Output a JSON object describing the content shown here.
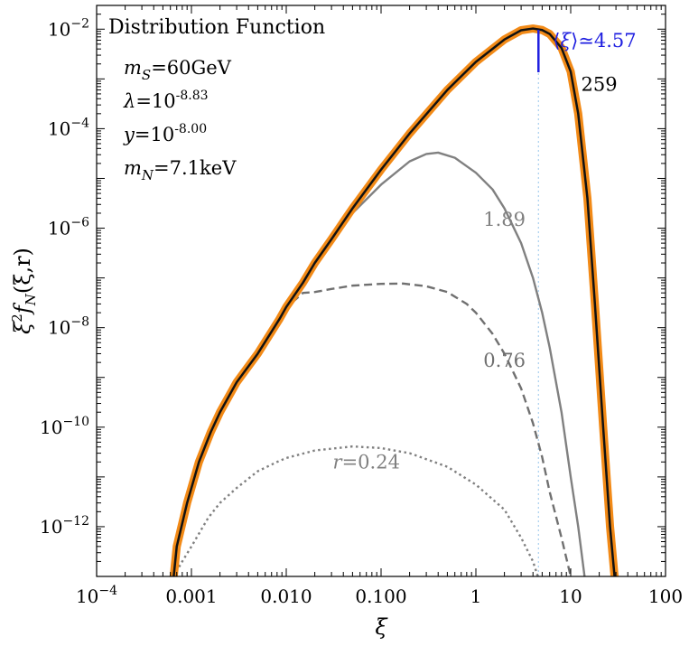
{
  "chart_data": {
    "type": "line",
    "title": "Distribution Function",
    "xlabel": "ξ",
    "ylabel_main": "ξ",
    "ylabel_sup": "2",
    "ylabel_f": "f",
    "ylabel_sub": "N",
    "ylabel_args": "(ξ,r)",
    "xscale": "log",
    "yscale": "log",
    "xlim": [
      0.0001,
      100
    ],
    "ylim": [
      1e-13,
      0.03
    ],
    "x_ticks": [
      {
        "v": 0.0001,
        "base": "10",
        "exp": "−4"
      },
      {
        "v": 0.001,
        "text": "0.001"
      },
      {
        "v": 0.01,
        "text": "0.010"
      },
      {
        "v": 0.1,
        "text": "0.100"
      },
      {
        "v": 1,
        "text": "1"
      },
      {
        "v": 10,
        "text": "10"
      },
      {
        "v": 100,
        "text": "100"
      }
    ],
    "y_ticks": [
      {
        "v": 1e-12,
        "base": "10",
        "exp": "−12"
      },
      {
        "v": 1e-10,
        "base": "10",
        "exp": "−10"
      },
      {
        "v": 1e-08,
        "base": "10",
        "exp": "−8"
      },
      {
        "v": 1e-06,
        "base": "10",
        "exp": "−6"
      },
      {
        "v": 0.0001,
        "base": "10",
        "exp": "−4"
      },
      {
        "v": 0.01,
        "base": "10",
        "exp": "−2"
      }
    ],
    "params": [
      {
        "sym": "m",
        "sub": "S",
        "eq": "=60GeV"
      },
      {
        "sym": "λ",
        "eq": "=10",
        "sup": "-8.83"
      },
      {
        "sym": "y",
        "eq": "=10",
        "sup": "-8.00"
      },
      {
        "sym": "m",
        "sub": "N",
        "eq": "=7.1keV"
      }
    ],
    "mean": {
      "label_open": "⟨",
      "label_sym": "ξ",
      "label_close": "⟩≃4.57",
      "value": 4.57,
      "color": "#1f1fe0"
    },
    "series": [
      {
        "label": "259",
        "style": "solid",
        "color": "#111111",
        "halo": "#f28a17",
        "label_at": [
          20,
          0.00077
        ],
        "points": [
          [
            0.00065,
            1e-13
          ],
          [
            0.0007,
            4e-13
          ],
          [
            0.0009,
            3e-12
          ],
          [
            0.0012,
            2e-11
          ],
          [
            0.0016,
            8e-11
          ],
          [
            0.002,
            2e-10
          ],
          [
            0.003,
            8e-10
          ],
          [
            0.005,
            3e-09
          ],
          [
            0.0085,
            1.5e-08
          ],
          [
            0.01,
            2.6e-08
          ],
          [
            0.015,
            8e-08
          ],
          [
            0.02,
            2e-07
          ],
          [
            0.03,
            6e-07
          ],
          [
            0.05,
            2.5e-06
          ],
          [
            0.1,
            1.5e-05
          ],
          [
            0.2,
            8e-05
          ],
          [
            0.5,
            0.0006
          ],
          [
            1,
            0.0022
          ],
          [
            2,
            0.0062
          ],
          [
            3,
            0.0095
          ],
          [
            4,
            0.0103
          ],
          [
            5,
            0.0096
          ],
          [
            6,
            0.008
          ],
          [
            8,
            0.0042
          ],
          [
            10,
            0.0014
          ],
          [
            12,
            0.0002
          ],
          [
            15,
            4e-06
          ],
          [
            18,
            3e-08
          ],
          [
            22,
            1e-10
          ],
          [
            26,
            1e-12
          ],
          [
            29,
            1e-13
          ]
        ]
      },
      {
        "label": "1.89",
        "style": "solid",
        "color": "#808080",
        "label_at": [
          2.0,
          1.5e-06
        ],
        "points": [
          [
            0.00065,
            1e-13
          ],
          [
            0.0007,
            4e-13
          ],
          [
            0.0009,
            3e-12
          ],
          [
            0.0012,
            2e-11
          ],
          [
            0.0016,
            8e-11
          ],
          [
            0.002,
            2e-10
          ],
          [
            0.003,
            8e-10
          ],
          [
            0.005,
            3e-09
          ],
          [
            0.0085,
            1.5e-08
          ],
          [
            0.01,
            2.6e-08
          ],
          [
            0.015,
            8e-08
          ],
          [
            0.02,
            2e-07
          ],
          [
            0.03,
            6e-07
          ],
          [
            0.05,
            2e-06
          ],
          [
            0.1,
            7.5e-06
          ],
          [
            0.2,
            2.2e-05
          ],
          [
            0.3,
            3.1e-05
          ],
          [
            0.4,
            3.3e-05
          ],
          [
            0.6,
            2.6e-05
          ],
          [
            1,
            1.3e-05
          ],
          [
            1.5,
            6e-06
          ],
          [
            2,
            2.5e-06
          ],
          [
            3,
            5e-07
          ],
          [
            4,
            1e-07
          ],
          [
            5,
            2e-08
          ],
          [
            6,
            4e-09
          ],
          [
            8,
            2e-10
          ],
          [
            10,
            1e-11
          ],
          [
            12,
            1e-12
          ],
          [
            14,
            1e-13
          ]
        ]
      },
      {
        "label": "0.76",
        "style": "dashed",
        "color": "#707070",
        "label_at": [
          2.0,
          2.2e-09
        ],
        "points": [
          [
            0.00065,
            1e-13
          ],
          [
            0.0007,
            4e-13
          ],
          [
            0.0009,
            3e-12
          ],
          [
            0.0012,
            2e-11
          ],
          [
            0.0016,
            8e-11
          ],
          [
            0.002,
            2e-10
          ],
          [
            0.003,
            8e-10
          ],
          [
            0.005,
            3e-09
          ],
          [
            0.0085,
            1.5e-08
          ],
          [
            0.01,
            2.5e-08
          ],
          [
            0.015,
            5e-08
          ],
          [
            0.02,
            5.2e-08
          ],
          [
            0.03,
            6e-08
          ],
          [
            0.05,
            7e-08
          ],
          [
            0.1,
            7.6e-08
          ],
          [
            0.17,
            7.7e-08
          ],
          [
            0.3,
            6.8e-08
          ],
          [
            0.5,
            5.2e-08
          ],
          [
            0.8,
            3e-08
          ],
          [
            1,
            2e-08
          ],
          [
            1.5,
            7.5e-09
          ],
          [
            2,
            3e-09
          ],
          [
            3,
            6e-10
          ],
          [
            4,
            1.2e-10
          ],
          [
            5,
            2.5e-11
          ],
          [
            6,
            5e-12
          ],
          [
            8,
            6e-13
          ],
          [
            10,
            1e-13
          ]
        ]
      },
      {
        "label": "r=0.24",
        "style": "dotted",
        "color": "#808080",
        "label_at": [
          0.07,
          2e-11
        ],
        "points": [
          [
            0.00065,
            1e-13
          ],
          [
            0.0008,
            2e-13
          ],
          [
            0.001,
            4e-13
          ],
          [
            0.0015,
            1.5e-12
          ],
          [
            0.002,
            3e-12
          ],
          [
            0.003,
            6e-12
          ],
          [
            0.005,
            1.3e-11
          ],
          [
            0.008,
            2e-11
          ],
          [
            0.01,
            2.4e-11
          ],
          [
            0.02,
            3.4e-11
          ],
          [
            0.05,
            4.1e-11
          ],
          [
            0.1,
            3.8e-11
          ],
          [
            0.2,
            3e-11
          ],
          [
            0.5,
            1.6e-11
          ],
          [
            1,
            7e-12
          ],
          [
            2,
            2.2e-12
          ],
          [
            3,
            6e-13
          ],
          [
            4,
            2e-13
          ],
          [
            4.5,
            1e-13
          ]
        ]
      }
    ]
  }
}
